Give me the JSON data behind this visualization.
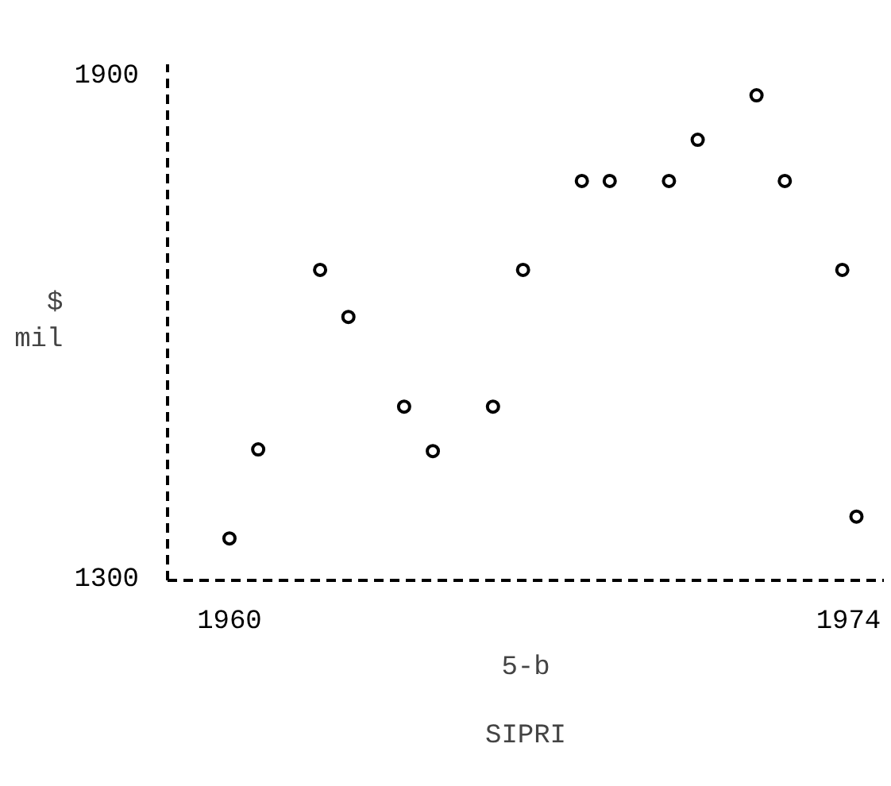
{
  "chart_data": {
    "type": "scatter",
    "ylabel": "$ mil",
    "x": [
      1960.0,
      1960.65,
      1962.05,
      1962.69,
      1963.95,
      1964.6,
      1965.96,
      1966.64,
      1967.97,
      1968.6,
      1969.94,
      1970.59,
      1971.92,
      1972.56,
      1973.86,
      1974.18
    ],
    "values": [
      1345,
      1451,
      1665,
      1609,
      1502,
      1449,
      1502,
      1665,
      1771,
      1771,
      1771,
      1820,
      1873,
      1771,
      1665,
      1371
    ],
    "color": "#000000",
    "marker": "circle",
    "grid": false,
    "xlim": [
      1958.6,
      1974.8
    ],
    "ylim": [
      1295,
      1910
    ],
    "xticks": [
      1960,
      1974
    ],
    "yticks": [
      1300,
      1900
    ],
    "annotations": [
      "5-b",
      "SIPRI"
    ]
  }
}
